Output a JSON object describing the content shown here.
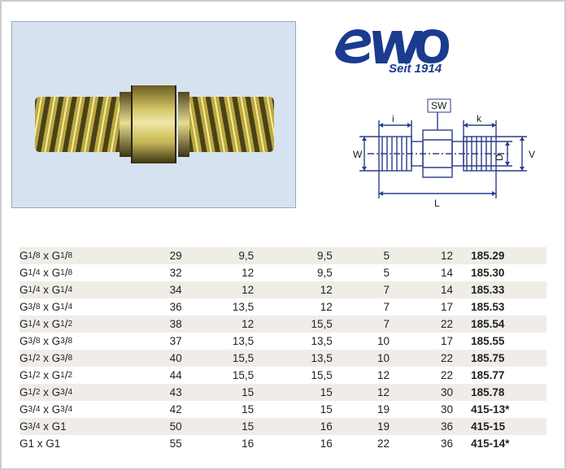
{
  "logo": {
    "text": "ewo",
    "tagline": "Seit 1914",
    "color": "#1b3b8f"
  },
  "diagram": {
    "labels": {
      "SW": "SW",
      "i": "i",
      "k": "k",
      "W": "W",
      "D": "D",
      "V": "V",
      "L": "L"
    },
    "line_color": "#2a3d8a",
    "line_width": 1.4
  },
  "table": {
    "band_color": "#f0ede8",
    "rows": [
      {
        "thread": "G¹/₈ x G¹/₈",
        "L": "29",
        "i": "9,5",
        "k": "9,5",
        "D": "5",
        "SW": "12",
        "art": "185.29",
        "band": true
      },
      {
        "thread": "G¹/₄ x G¹/₈",
        "L": "32",
        "i": "12",
        "k": "9,5",
        "D": "5",
        "SW": "14",
        "art": "185.30",
        "band": false
      },
      {
        "thread": "G¹/₄ x G¹/₄",
        "L": "34",
        "i": "12",
        "k": "12",
        "D": "7",
        "SW": "14",
        "art": "185.33",
        "band": true
      },
      {
        "thread": "G³/₈ x G¹/₄",
        "L": "36",
        "i": "13,5",
        "k": "12",
        "D": "7",
        "SW": "17",
        "art": "185.53",
        "band": false
      },
      {
        "thread": "G¹/₄ x G¹/₂",
        "L": "38",
        "i": "12",
        "k": "15,5",
        "D": "7",
        "SW": "22",
        "art": "185.54",
        "band": true
      },
      {
        "thread": "G³/₈ x G³/₈",
        "L": "37",
        "i": "13,5",
        "k": "13,5",
        "D": "10",
        "SW": "17",
        "art": "185.55",
        "band": false
      },
      {
        "thread": "G¹/₂ x G³/₈",
        "L": "40",
        "i": "15,5",
        "k": "13,5",
        "D": "10",
        "SW": "22",
        "art": "185.75",
        "band": true
      },
      {
        "thread": "G¹/₂ x G¹/₂",
        "L": "44",
        "i": "15,5",
        "k": "15,5",
        "D": "12",
        "SW": "22",
        "art": "185.77",
        "band": false
      },
      {
        "thread": "G¹/₂ x G³/₄",
        "L": "43",
        "i": "15",
        "k": "15",
        "D": "12",
        "SW": "30",
        "art": "185.78",
        "band": true
      },
      {
        "thread": "G³/₄ x G³/₄",
        "L": "42",
        "i": "15",
        "k": "15",
        "D": "19",
        "SW": "30",
        "art": "415-13*",
        "band": false
      },
      {
        "thread": "G³/₄ x G1",
        "L": "50",
        "i": "15",
        "k": "16",
        "D": "19",
        "SW": "36",
        "art": "415-15",
        "band": true
      },
      {
        "thread": "G1   x G1",
        "L": "55",
        "i": "16",
        "k": "16",
        "D": "22",
        "SW": "36",
        "art": "415-14*",
        "band": false
      }
    ]
  }
}
